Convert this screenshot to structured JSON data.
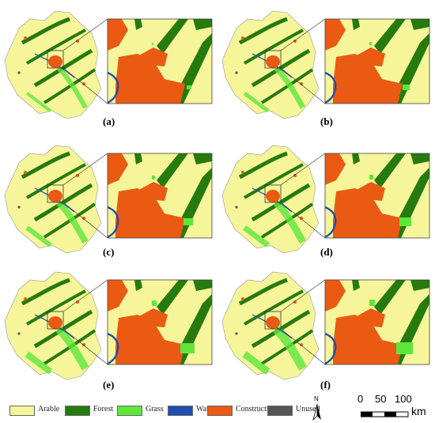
{
  "panels": [
    {
      "id": "a",
      "label": "(a)"
    },
    {
      "id": "b",
      "label": "(b)"
    },
    {
      "id": "c",
      "label": "(c)"
    },
    {
      "id": "d",
      "label": "(d)"
    },
    {
      "id": "e",
      "label": "(e)"
    },
    {
      "id": "f",
      "label": "(f)"
    }
  ],
  "legend": [
    {
      "label": "Arable",
      "color": "#f6f59a"
    },
    {
      "label": "Forest",
      "color": "#267a0e"
    },
    {
      "label": "Grass",
      "color": "#5ee63a"
    },
    {
      "label": "Water",
      "color": "#1f4fb0"
    },
    {
      "label": "Construction",
      "color": "#ea5a12"
    },
    {
      "label": "Unused",
      "color": "#555555"
    }
  ],
  "north_arrow": {
    "label": "N"
  },
  "scale_bar": {
    "ticks": [
      "0",
      "50",
      "100"
    ],
    "unit": "km"
  }
}
